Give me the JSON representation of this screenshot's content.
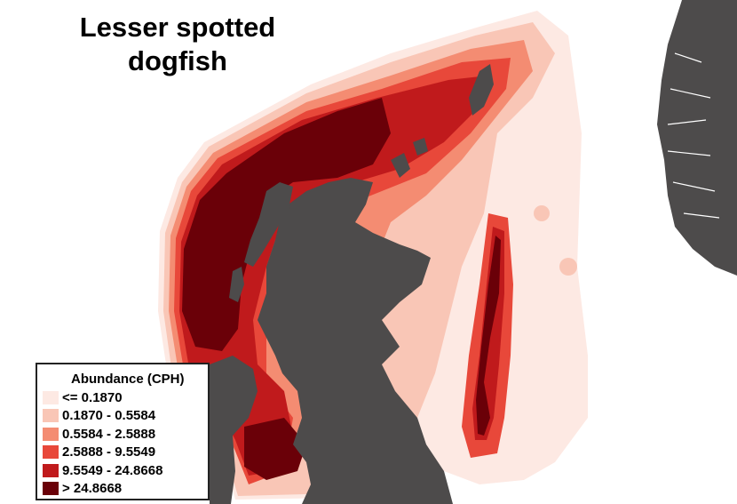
{
  "title": "Lesser spotted dogfish",
  "legend": {
    "title": "Abundance (CPH)",
    "items": [
      {
        "label": "<= 0.1870",
        "color": "#fde9e3"
      },
      {
        "label": "0.1870 - 0.5584",
        "color": "#f9c6b6"
      },
      {
        "label": "0.5584 - 2.5888",
        "color": "#f48c72"
      },
      {
        "label": "2.5888 - 9.5549",
        "color": "#e8483a"
      },
      {
        "label": "9.5549 - 24.8668",
        "color": "#c01a1c"
      },
      {
        "label": "> 24.8668",
        "color": "#6a0008"
      }
    ]
  },
  "colors": {
    "land": "#4d4b4b",
    "background": "#ffffff"
  }
}
